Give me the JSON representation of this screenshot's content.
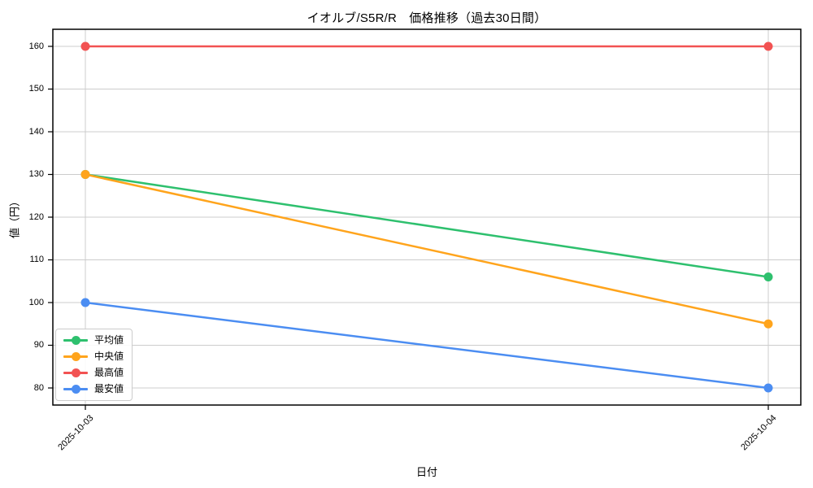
{
  "chart_data": {
    "type": "line",
    "title": "イオルブ/S5R/R　価格推移（過去30日間）",
    "xlabel": "日付",
    "ylabel": "値（円）",
    "x": [
      "2025-10-03",
      "2025-10-04"
    ],
    "series": [
      {
        "name": "平均値",
        "color": "#2ec06e",
        "values": [
          130,
          106
        ]
      },
      {
        "name": "中央値",
        "color": "#ffa41c",
        "values": [
          130,
          95
        ]
      },
      {
        "name": "最高値",
        "color": "#f25252",
        "values": [
          160,
          160
        ]
      },
      {
        "name": "最安値",
        "color": "#4b8df2",
        "values": [
          100,
          80
        ]
      }
    ],
    "yticks": [
      80,
      90,
      100,
      110,
      120,
      130,
      140,
      150,
      160
    ],
    "ylim": [
      76,
      164
    ],
    "grid": true,
    "grid_color": "#cccccc",
    "spine_color": "#000000",
    "background": "#ffffff",
    "legend_position": "lower left"
  }
}
